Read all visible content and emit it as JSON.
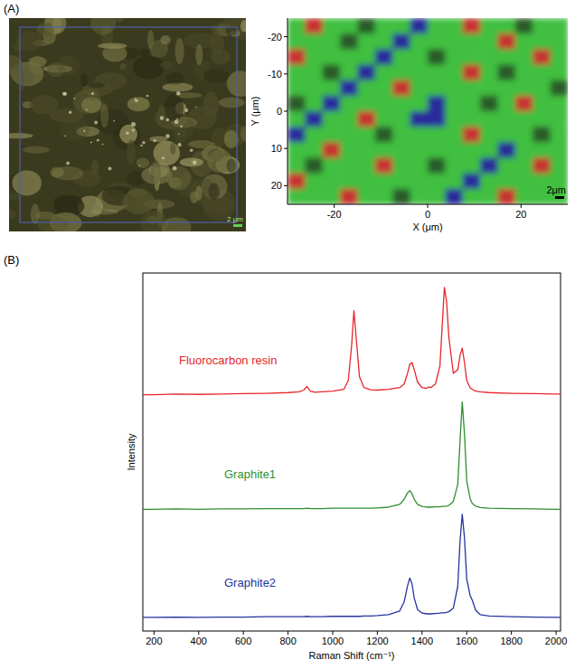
{
  "panel_labels": [
    "(A)",
    "(B)"
  ],
  "chart_data": [
    {
      "type": "image",
      "color": "#3a3a1f",
      "scale_bar": "2 μm"
    },
    {
      "type": "heatmap",
      "xlabel": "X (μm)",
      "ylabel": "Y (μm)",
      "xlim": [
        -30,
        30
      ],
      "ylim": [
        25,
        -25
      ],
      "xticks": [
        -20,
        0,
        20
      ],
      "yticks": [
        -20,
        -10,
        0,
        10,
        20
      ],
      "colors": [
        "#c83030",
        "#3fbf3f",
        "#2a2a9c",
        "#2c5a2c"
      ],
      "scale_bar": "2μm",
      "cells": [
        [
          1,
          0,
          1,
          1,
          3,
          1,
          1,
          2,
          1,
          1,
          0,
          1,
          1,
          3,
          1,
          1
        ],
        [
          1,
          1,
          1,
          3,
          1,
          1,
          2,
          1,
          1,
          1,
          1,
          1,
          0,
          1,
          1,
          1
        ],
        [
          0,
          1,
          1,
          1,
          1,
          2,
          1,
          1,
          3,
          1,
          1,
          1,
          1,
          1,
          0,
          1
        ],
        [
          1,
          1,
          3,
          1,
          2,
          1,
          1,
          1,
          1,
          1,
          0,
          1,
          3,
          1,
          1,
          1
        ],
        [
          1,
          1,
          1,
          2,
          1,
          1,
          0,
          1,
          1,
          1,
          1,
          1,
          1,
          1,
          1,
          3
        ],
        [
          3,
          1,
          2,
          1,
          1,
          1,
          1,
          1,
          2,
          1,
          1,
          3,
          1,
          0,
          1,
          1
        ],
        [
          1,
          2,
          1,
          1,
          0,
          1,
          1,
          2,
          2,
          1,
          1,
          1,
          1,
          1,
          1,
          1
        ],
        [
          2,
          1,
          1,
          1,
          1,
          3,
          1,
          1,
          1,
          1,
          0,
          1,
          1,
          1,
          3,
          1
        ],
        [
          1,
          1,
          0,
          1,
          1,
          1,
          1,
          1,
          1,
          1,
          1,
          1,
          2,
          1,
          1,
          1
        ],
        [
          1,
          3,
          1,
          1,
          1,
          0,
          1,
          1,
          3,
          1,
          1,
          2,
          1,
          1,
          0,
          1
        ],
        [
          0,
          1,
          1,
          1,
          1,
          1,
          1,
          1,
          1,
          1,
          2,
          1,
          1,
          1,
          1,
          1
        ],
        [
          1,
          1,
          1,
          0,
          1,
          1,
          3,
          1,
          1,
          2,
          1,
          1,
          0,
          1,
          1,
          1
        ]
      ]
    },
    {
      "type": "line",
      "xlabel": "Raman Shift (cm⁻¹)",
      "ylabel": "Intensity",
      "xlim": [
        150,
        2020
      ],
      "ylim": [
        0,
        100
      ],
      "xticks": [
        200,
        400,
        600,
        800,
        1000,
        1200,
        1400,
        1600,
        1800,
        2000
      ],
      "tick_labels": "x",
      "x": [
        150,
        200,
        300,
        400,
        500,
        600,
        700,
        800,
        850,
        870,
        885,
        900,
        920,
        950,
        1000,
        1050,
        1070,
        1085,
        1095,
        1105,
        1120,
        1140,
        1170,
        1200,
        1250,
        1300,
        1320,
        1335,
        1345,
        1355,
        1365,
        1380,
        1400,
        1420,
        1430,
        1440,
        1460,
        1480,
        1490,
        1500,
        1510,
        1520,
        1540,
        1560,
        1570,
        1580,
        1590,
        1600,
        1615,
        1625,
        1640,
        1660,
        1700,
        1800,
        1900,
        2000,
        2020
      ],
      "series": [
        {
          "name": "Fluorocarbon resin",
          "color": "#e8262a",
          "values": [
            66,
            66,
            66.2,
            66.1,
            66.2,
            66.3,
            66.4,
            66.6,
            66.8,
            67.3,
            68.3,
            67,
            66.7,
            66.8,
            67,
            67.5,
            70,
            80,
            89.5,
            82,
            71,
            68,
            67.4,
            67.3,
            67.5,
            68,
            69,
            72,
            74.5,
            75,
            73,
            69.5,
            68,
            67.8,
            68.2,
            68,
            69,
            74,
            85,
            96,
            92,
            82,
            72,
            73,
            77,
            79,
            75,
            70,
            68,
            67.5,
            67,
            66.8,
            66.6,
            66.4,
            66.3,
            66.2,
            66.2
          ]
        },
        {
          "name": "Graphite1",
          "color": "#2f8f2f",
          "values": [
            34,
            34,
            34.1,
            34,
            34.1,
            34.1,
            34.2,
            34.2,
            34.2,
            34.2,
            34.3,
            34.2,
            34.2,
            34.2,
            34.3,
            34.3,
            34.3,
            34.3,
            34.3,
            34.3,
            34.3,
            34.3,
            34.3,
            34.4,
            34.6,
            35.4,
            36.8,
            38.6,
            39.2,
            38.4,
            36.8,
            35.4,
            34.8,
            34.6,
            34.6,
            34.6,
            34.7,
            34.7,
            34.8,
            34.8,
            34.9,
            35.1,
            36.2,
            41,
            53,
            64,
            55,
            42,
            37,
            35.6,
            34.9,
            34.5,
            34.3,
            34.2,
            34.1,
            34,
            34
          ]
        },
        {
          "name": "Graphite2",
          "color": "#2433a0",
          "values": [
            3.8,
            3.8,
            3.9,
            3.8,
            3.9,
            3.9,
            4,
            4,
            4,
            4,
            4.1,
            4,
            4,
            4,
            4.1,
            4.1,
            4.1,
            4.1,
            4.1,
            4.1,
            4.1,
            4.2,
            4.2,
            4.3,
            4.6,
            5.6,
            8.2,
            12.6,
            14.8,
            13.2,
            9.2,
            6,
            5,
            4.8,
            4.8,
            4.8,
            4.9,
            5,
            5.1,
            5.1,
            5.2,
            5.4,
            6.4,
            12.5,
            25,
            32.6,
            26,
            14.5,
            10,
            8.6,
            5.8,
            4.6,
            4.2,
            4,
            3.9,
            3.8,
            3.8
          ]
        }
      ]
    }
  ]
}
